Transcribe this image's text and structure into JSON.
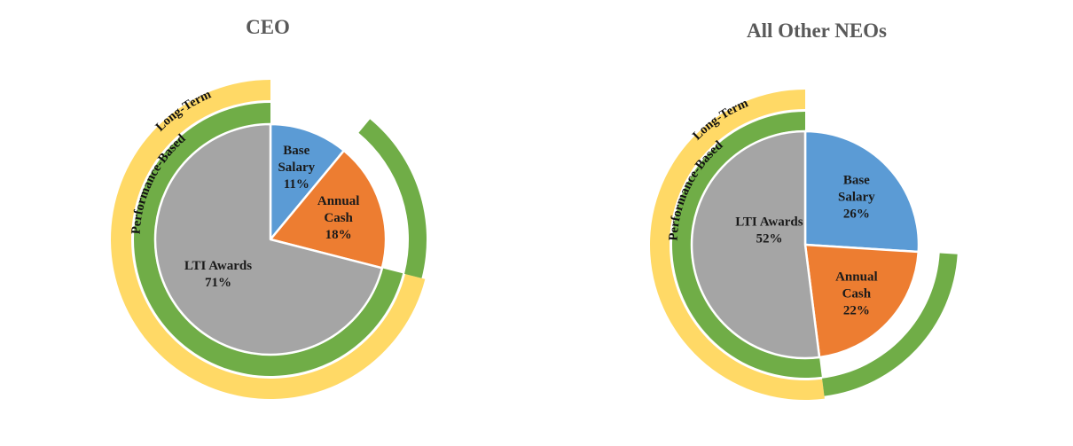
{
  "colors": {
    "base_salary": "#5B9BD5",
    "annual_cash": "#ED7D31",
    "lti_awards": "#A5A5A5",
    "performance_ring": "#70AD47",
    "long_term_ring": "#FFD966"
  },
  "chart_data": [
    {
      "type": "pie",
      "title": "CEO",
      "slices": [
        {
          "name": "Base Salary",
          "lines": [
            "Base",
            "Salary",
            "11%"
          ],
          "value": 11
        },
        {
          "name": "Annual Cash",
          "lines": [
            "Annual",
            "Cash",
            "18%"
          ],
          "value": 18
        },
        {
          "name": "LTI Awards",
          "lines": [
            "LTI Awards",
            "71%"
          ],
          "value": 71
        }
      ],
      "rings": [
        {
          "label": "Performance-Based",
          "covers": [
            "Annual Cash",
            "LTI Awards"
          ],
          "value": 89
        },
        {
          "label": "Long-Term",
          "covers": [
            "LTI Awards"
          ],
          "value": 71
        }
      ]
    },
    {
      "type": "pie",
      "title": "All Other NEOs",
      "slices": [
        {
          "name": "Base Salary",
          "lines": [
            "Base",
            "Salary",
            "26%"
          ],
          "value": 26
        },
        {
          "name": "Annual Cash",
          "lines": [
            "Annual",
            "Cash",
            "22%"
          ],
          "value": 22
        },
        {
          "name": "LTI Awards",
          "lines": [
            "LTI Awards",
            "52%"
          ],
          "value": 52
        }
      ],
      "rings": [
        {
          "label": "Performance-Based",
          "covers": [
            "Annual Cash",
            "LTI Awards"
          ],
          "value": 74
        },
        {
          "label": "Long-Term",
          "covers": [
            "LTI Awards"
          ],
          "value": 52
        }
      ]
    }
  ]
}
